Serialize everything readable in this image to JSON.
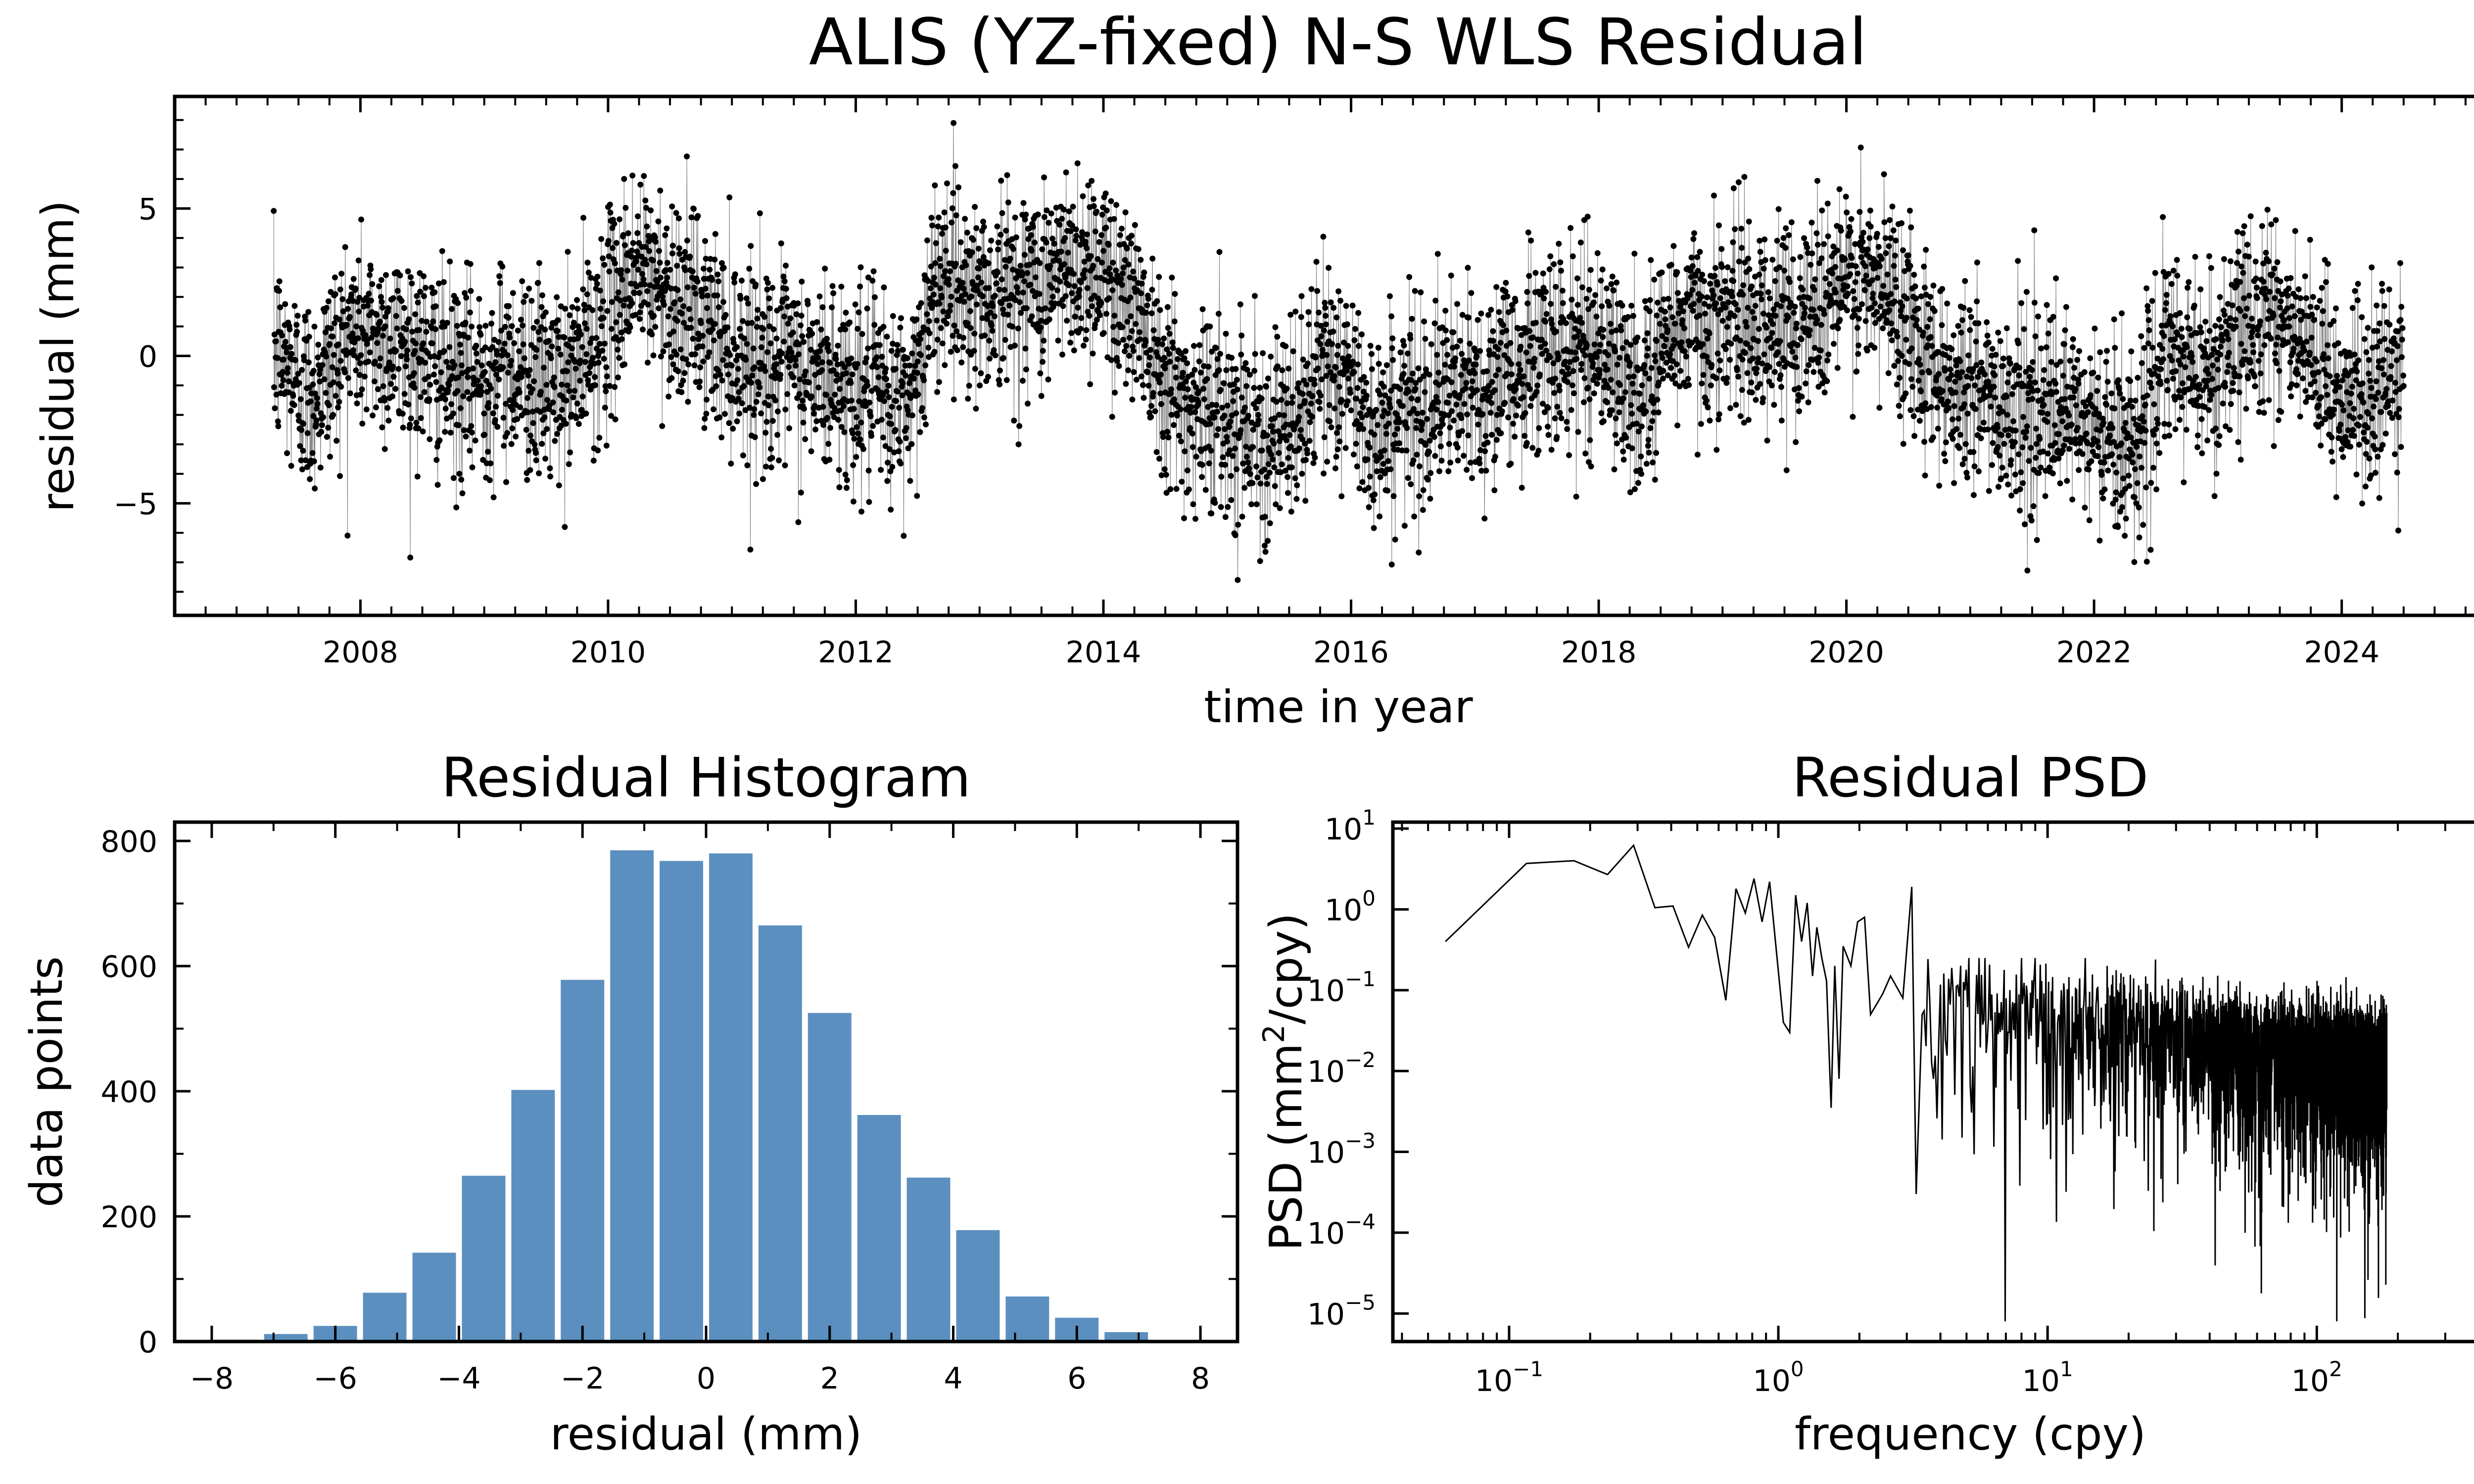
{
  "figure": {
    "title": "ALIS (YZ-fixed) N-S WLS Residual"
  },
  "colors": {
    "series": "#000000",
    "hist_bar": "#5a8fbf",
    "axis": "#000000"
  },
  "chart_data": [
    {
      "type": "scatter",
      "title": "ALIS (YZ-fixed) N-S WLS Residual",
      "xlabel": "time in year",
      "ylabel": "residual (mm)",
      "xlim": [
        2006.5,
        2025.3
      ],
      "ylim": [
        -8.8,
        8.8
      ],
      "x_ticks": [
        2008,
        2010,
        2012,
        2014,
        2016,
        2018,
        2020,
        2022,
        2024
      ],
      "y_ticks": [
        -5,
        0,
        5
      ],
      "x_tick_labels": [
        "2008",
        "2010",
        "2012",
        "2014",
        "2016",
        "2018",
        "2020",
        "2022",
        "2024"
      ],
      "y_tick_labels": [
        "−5",
        "0",
        "5"
      ],
      "data_start": 2007.3,
      "data_end": 2024.5,
      "trend": [
        [
          2007.3,
          0.2
        ],
        [
          2007.6,
          -1.5
        ],
        [
          2007.9,
          0.8
        ],
        [
          2008.4,
          0.3
        ],
        [
          2008.8,
          -1.0
        ],
        [
          2009.2,
          -0.3
        ],
        [
          2009.6,
          -1.2
        ],
        [
          2009.9,
          0.5
        ],
        [
          2010.2,
          3.0
        ],
        [
          2010.6,
          1.8
        ],
        [
          2011.0,
          0.2
        ],
        [
          2011.5,
          -0.5
        ],
        [
          2012.0,
          -1.0
        ],
        [
          2012.4,
          -1.8
        ],
        [
          2012.7,
          3.0
        ],
        [
          2013.0,
          2.0
        ],
        [
          2013.5,
          2.5
        ],
        [
          2013.9,
          3.2
        ],
        [
          2014.3,
          1.5
        ],
        [
          2014.6,
          -1.5
        ],
        [
          2015.0,
          -2.0
        ],
        [
          2015.5,
          -2.8
        ],
        [
          2015.8,
          0.0
        ],
        [
          2016.2,
          -2.5
        ],
        [
          2016.6,
          -1.5
        ],
        [
          2017.0,
          -1.2
        ],
        [
          2017.5,
          0.0
        ],
        [
          2018.0,
          0.5
        ],
        [
          2018.3,
          -1.5
        ],
        [
          2018.6,
          1.0
        ],
        [
          2019.0,
          1.3
        ],
        [
          2019.5,
          1.0
        ],
        [
          2020.0,
          2.5
        ],
        [
          2020.4,
          2.0
        ],
        [
          2020.8,
          -0.8
        ],
        [
          2021.2,
          -1.5
        ],
        [
          2021.6,
          -2.0
        ],
        [
          2022.0,
          -2.5
        ],
        [
          2022.3,
          -3.0
        ],
        [
          2022.6,
          0.0
        ],
        [
          2023.0,
          -0.5
        ],
        [
          2023.4,
          2.0
        ],
        [
          2023.8,
          -0.8
        ],
        [
          2024.2,
          -1.5
        ],
        [
          2024.5,
          -0.5
        ]
      ],
      "noise_sd": 1.7,
      "point_count": 5600
    },
    {
      "type": "bar",
      "title": "Residual Histogram",
      "xlabel": "residual (mm)",
      "ylabel": "data points",
      "xlim": [
        -8.6,
        8.6
      ],
      "ylim": [
        0,
        830
      ],
      "x_ticks": [
        -8,
        -6,
        -4,
        -2,
        0,
        2,
        4,
        6,
        8
      ],
      "x_tick_labels": [
        "−8",
        "−6",
        "−4",
        "−2",
        "0",
        "2",
        "4",
        "6",
        "8"
      ],
      "y_ticks": [
        0,
        200,
        400,
        600,
        800
      ],
      "y_tick_labels": [
        "0",
        "200",
        "400",
        "600",
        "800"
      ],
      "bin_width": 0.8,
      "bin_centers": [
        -7.6,
        -6.8,
        -6.0,
        -5.2,
        -4.4,
        -3.6,
        -2.8,
        -2.0,
        -1.2,
        -0.4,
        0.4,
        1.2,
        2.0,
        2.8,
        3.6,
        4.4,
        5.2,
        6.0,
        6.8
      ],
      "values": [
        3,
        12,
        25,
        78,
        142,
        265,
        402,
        578,
        785,
        768,
        780,
        665,
        525,
        362,
        262,
        178,
        72,
        38,
        15
      ]
    },
    {
      "type": "line",
      "title": "Residual PSD",
      "xlabel": "frequency (cpy)",
      "ylabel_prefix": "PSD (mm",
      "ylabel_sup": "2",
      "ylabel_suffix": "/cpy)",
      "x_scale": "log",
      "y_scale": "log",
      "xlim": [
        0.037,
        470
      ],
      "ylim": [
        4.5e-06,
        12
      ],
      "x_ticks": [
        0.1,
        1,
        10,
        100
      ],
      "x_tick_labels": [
        {
          "base": "10",
          "exp": "−1"
        },
        {
          "base": "10",
          "exp": "0"
        },
        {
          "base": "10",
          "exp": "1"
        },
        {
          "base": "10",
          "exp": "2"
        }
      ],
      "y_ticks": [
        1e-05,
        0.0001,
        0.001,
        0.01,
        0.1,
        1,
        10
      ],
      "y_tick_labels": [
        {
          "base": "10",
          "exp": "−5"
        },
        {
          "base": "10",
          "exp": "−4"
        },
        {
          "base": "10",
          "exp": "−3"
        },
        {
          "base": "10",
          "exp": "−2"
        },
        {
          "base": "10",
          "exp": "−1"
        },
        {
          "base": "10",
          "exp": "0"
        },
        {
          "base": "10",
          "exp": "1"
        }
      ],
      "low_freq_points": [
        [
          0.058,
          0.4
        ],
        [
          0.116,
          3.7
        ],
        [
          0.174,
          4.0
        ],
        [
          0.232,
          2.7
        ],
        [
          0.29,
          6.2
        ],
        [
          0.348,
          1.05
        ],
        [
          0.406,
          1.1
        ],
        [
          0.464,
          0.34
        ],
        [
          0.522,
          0.85
        ],
        [
          0.58,
          0.45
        ],
        [
          0.638,
          0.075
        ],
        [
          0.696,
          1.8
        ],
        [
          0.754,
          0.9
        ],
        [
          0.812,
          2.4
        ],
        [
          0.87,
          0.7
        ],
        [
          0.928,
          2.2
        ],
        [
          0.986,
          0.28
        ],
        [
          1.044,
          0.04
        ],
        [
          1.102,
          0.03
        ],
        [
          1.16,
          1.5
        ],
        [
          1.22,
          0.4
        ],
        [
          1.28,
          1.2
        ],
        [
          1.34,
          0.15
        ],
        [
          1.39,
          0.6
        ],
        [
          1.45,
          0.25
        ],
        [
          1.51,
          0.13
        ],
        [
          1.57,
          0.0035
        ],
        [
          1.62,
          0.2
        ],
        [
          1.68,
          0.008
        ],
        [
          1.74,
          0.35
        ],
        [
          1.86,
          0.2
        ],
        [
          1.97,
          0.7
        ],
        [
          2.09,
          0.8
        ],
        [
          2.2,
          0.05
        ],
        [
          2.44,
          0.09
        ],
        [
          2.61,
          0.15
        ],
        [
          2.9,
          0.08
        ],
        [
          3.13,
          1.9
        ],
        [
          3.25,
          0.0003
        ],
        [
          3.42,
          0.05
        ]
      ],
      "f_max": 182,
      "mid_level": 0.012
    }
  ]
}
